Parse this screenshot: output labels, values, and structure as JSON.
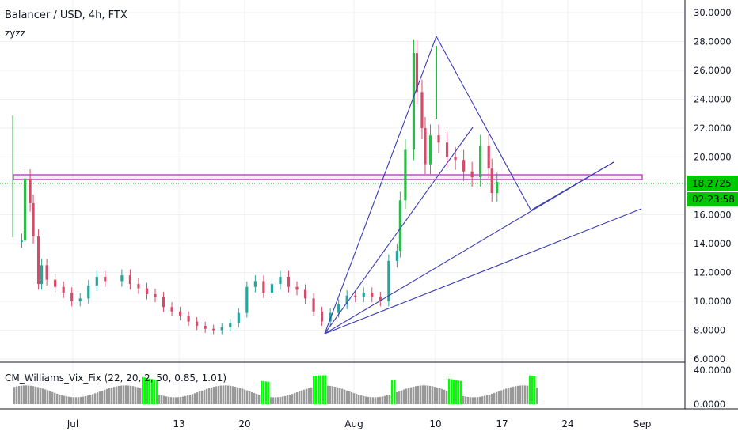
{
  "header": {
    "symbol_line": "Balancer / USD, 4h, FTX",
    "indicator_name": "zyzz"
  },
  "price_axis": {
    "ticks": [
      "30.0000",
      "28.0000",
      "26.0000",
      "24.0000",
      "22.0000",
      "20.0000",
      "18.0000",
      "16.0000",
      "14.0000",
      "12.0000",
      "10.0000",
      "8.0000",
      "6.0000"
    ],
    "last_price": "18.2725",
    "countdown": "02:23:58",
    "badge_color": "#00e600"
  },
  "time_axis": {
    "labels": [
      "Jul",
      "13",
      "20",
      "Aug",
      "10",
      "17",
      "24",
      "Sep"
    ]
  },
  "indicator": {
    "label": "CM_Williams_Vix_Fix (22, 20, 2, 50, 0.85, 1.01)",
    "ticks": [
      "40.0000",
      "0.0000"
    ]
  },
  "colors": {
    "up": "#26a69a",
    "up_bright": "#2fb84a",
    "down": "#d84a6a",
    "trendline": "#3b3bb8",
    "zone": "#c040c0",
    "last_line": "#00c800",
    "hist_normal": "#999999",
    "hist_alert": "#00ff00"
  },
  "chart_data": {
    "type": "candlestick",
    "title": "Balancer / USD, 4h, FTX",
    "y_range": [
      6,
      30
    ],
    "x_range": [
      "2020-06-23",
      "2020-09-06"
    ],
    "series": [
      {
        "date": "2020-06-24",
        "price": 14.2
      },
      {
        "date": "2020-06-24",
        "price": 18.5
      },
      {
        "date": "2020-06-25",
        "price": 16.8
      },
      {
        "date": "2020-06-25",
        "price": 14.5
      },
      {
        "date": "2020-06-26",
        "price": 11.2
      },
      {
        "date": "2020-06-26",
        "price": 12.5
      },
      {
        "date": "2020-06-27",
        "price": 11.5
      },
      {
        "date": "2020-06-28",
        "price": 11.0
      },
      {
        "date": "2020-06-29",
        "price": 10.6
      },
      {
        "date": "2020-06-30",
        "price": 10.0
      },
      {
        "date": "2020-07-01",
        "price": 10.2
      },
      {
        "date": "2020-07-02",
        "price": 11.1
      },
      {
        "date": "2020-07-03",
        "price": 11.7
      },
      {
        "date": "2020-07-04",
        "price": 11.4
      },
      {
        "date": "2020-07-06",
        "price": 11.8
      },
      {
        "date": "2020-07-07",
        "price": 11.2
      },
      {
        "date": "2020-07-08",
        "price": 10.9
      },
      {
        "date": "2020-07-09",
        "price": 10.5
      },
      {
        "date": "2020-07-10",
        "price": 10.3
      },
      {
        "date": "2020-07-11",
        "price": 9.6
      },
      {
        "date": "2020-07-12",
        "price": 9.3
      },
      {
        "date": "2020-07-13",
        "price": 9.0
      },
      {
        "date": "2020-07-14",
        "price": 8.6
      },
      {
        "date": "2020-07-15",
        "price": 8.3
      },
      {
        "date": "2020-07-16",
        "price": 8.1
      },
      {
        "date": "2020-07-17",
        "price": 8.0
      },
      {
        "date": "2020-07-18",
        "price": 8.2
      },
      {
        "date": "2020-07-19",
        "price": 8.5
      },
      {
        "date": "2020-07-20",
        "price": 9.2
      },
      {
        "date": "2020-07-21",
        "price": 11.0
      },
      {
        "date": "2020-07-22",
        "price": 11.4
      },
      {
        "date": "2020-07-23",
        "price": 10.6
      },
      {
        "date": "2020-07-24",
        "price": 11.2
      },
      {
        "date": "2020-07-25",
        "price": 11.7
      },
      {
        "date": "2020-07-26",
        "price": 11.0
      },
      {
        "date": "2020-07-27",
        "price": 10.8
      },
      {
        "date": "2020-07-28",
        "price": 10.2
      },
      {
        "date": "2020-07-29",
        "price": 9.3
      },
      {
        "date": "2020-07-30",
        "price": 8.6
      },
      {
        "date": "2020-07-31",
        "price": 9.2
      },
      {
        "date": "2020-08-01",
        "price": 9.8
      },
      {
        "date": "2020-08-02",
        "price": 10.4
      },
      {
        "date": "2020-08-03",
        "price": 10.3
      },
      {
        "date": "2020-08-04",
        "price": 10.6
      },
      {
        "date": "2020-08-05",
        "price": 10.3
      },
      {
        "date": "2020-08-06",
        "price": 10.0
      },
      {
        "date": "2020-08-07",
        "price": 12.8
      },
      {
        "date": "2020-08-08",
        "price": 13.5
      },
      {
        "date": "2020-08-08",
        "price": 17.0
      },
      {
        "date": "2020-08-09",
        "price": 20.5
      },
      {
        "date": "2020-08-10",
        "price": 27.2
      },
      {
        "date": "2020-08-10",
        "price": 24.5
      },
      {
        "date": "2020-08-11",
        "price": 22.0
      },
      {
        "date": "2020-08-11",
        "price": 19.5
      },
      {
        "date": "2020-08-12",
        "price": 21.5
      },
      {
        "date": "2020-08-13",
        "price": 21.0
      },
      {
        "date": "2020-08-14",
        "price": 20.0
      },
      {
        "date": "2020-08-15",
        "price": 19.8
      },
      {
        "date": "2020-08-16",
        "price": 19.0
      },
      {
        "date": "2020-08-17",
        "price": 18.6
      },
      {
        "date": "2020-08-18",
        "price": 20.8
      },
      {
        "date": "2020-08-19",
        "price": 19.2
      },
      {
        "date": "2020-08-19",
        "price": 17.5
      },
      {
        "date": "2020-08-20",
        "price": 18.27
      }
    ],
    "volatility_indicator": {
      "name": "CM_Williams_Vix_Fix",
      "params": [
        22,
        20,
        2,
        50,
        0.85,
        1.01
      ],
      "y_range": [
        0,
        40
      ]
    }
  }
}
